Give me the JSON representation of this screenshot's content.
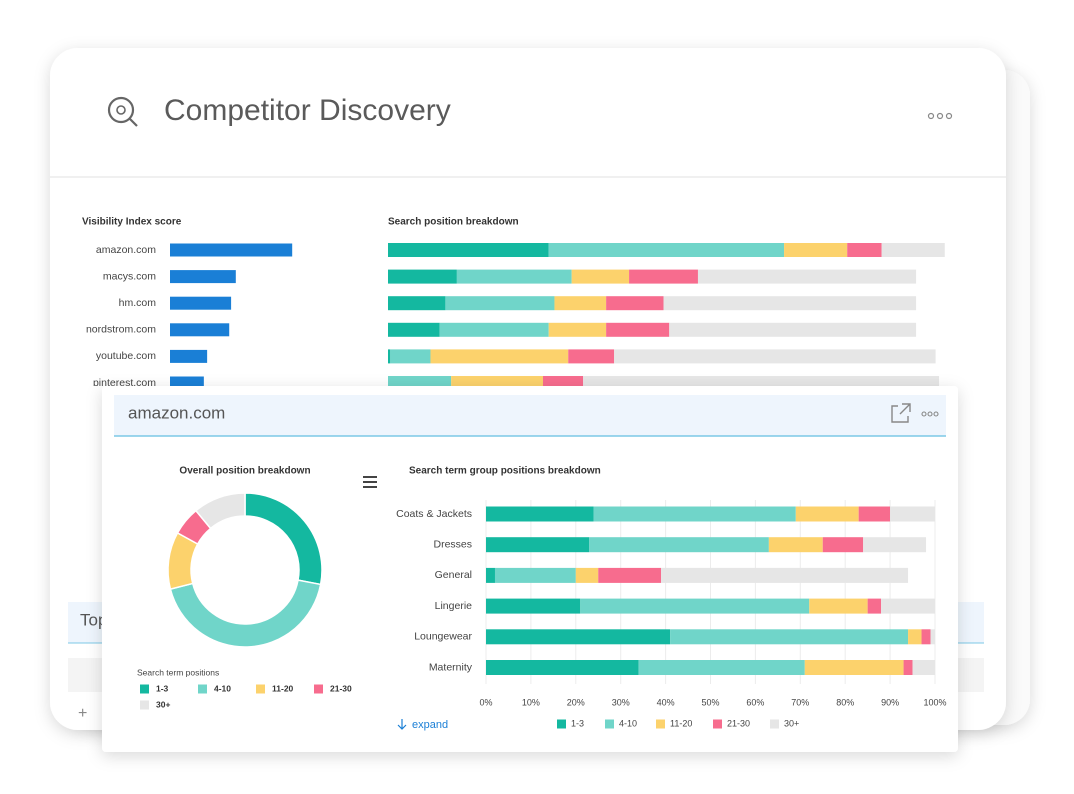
{
  "header": {
    "title": "Competitor Discovery"
  },
  "background": {
    "section_title": "Top"
  },
  "popup": {
    "title": "amazon.com",
    "expand": "expand"
  },
  "chart_data": [
    {
      "type": "bar",
      "orientation": "horizontal",
      "title": "Visibility Index score",
      "categories": [
        "amazon.com",
        "macys.com",
        "hm.com",
        "nordstrom.com",
        "youtube.com",
        "pinterest.com"
      ],
      "values": [
        2.6,
        1.4,
        1.3,
        1.26,
        0.79,
        0.72
      ],
      "color": "#1a7fd6",
      "xlim": [
        0,
        4
      ]
    },
    {
      "type": "stacked_bar",
      "orientation": "horizontal",
      "title": "Search position breakdown",
      "xlim": [
        0,
        100
      ],
      "series": [
        {
          "color": "#14b8a0",
          "values": [
            28,
            12,
            10,
            9,
            0.4,
            0
          ]
        },
        {
          "color": "#70d5c9",
          "values": [
            41,
            20,
            19,
            19,
            7,
            11
          ]
        },
        {
          "color": "#fcd26c",
          "values": [
            11,
            10,
            9,
            10,
            24,
            16
          ]
        },
        {
          "color": "#f76c8e",
          "values": [
            6,
            12,
            10,
            11,
            8,
            7
          ]
        },
        {
          "color": "#e6e6e6",
          "values": [
            11,
            38,
            44,
            43,
            56,
            62
          ]
        }
      ]
    },
    {
      "type": "pie",
      "donut": true,
      "title": "Overall position breakdown",
      "legend_title": "Search term positions",
      "categories": [
        "1-3",
        "4-10",
        "11-20",
        "21-30",
        "30+"
      ],
      "values": [
        28,
        43,
        12,
        6,
        11
      ],
      "colors": [
        "#14b8a0",
        "#70d5c9",
        "#fcd26c",
        "#f76c8e",
        "#e6e6e6"
      ]
    },
    {
      "type": "stacked_bar",
      "orientation": "horizontal",
      "title": "Search term group positions breakdown",
      "categories": [
        "Coats & Jackets",
        "Dresses",
        "General",
        "Lingerie",
        "Loungewear",
        "Maternity"
      ],
      "xlim": [
        0,
        100
      ],
      "xticks": [
        {
          "value": 0,
          "label": "0%"
        },
        {
          "value": 10,
          "label": "10%"
        },
        {
          "value": 20,
          "label": "20%"
        },
        {
          "value": 30,
          "label": "30%"
        },
        {
          "value": 40,
          "label": "40%"
        },
        {
          "value": 50,
          "label": "50%"
        },
        {
          "value": 60,
          "label": "60%"
        },
        {
          "value": 70,
          "label": "70%"
        },
        {
          "value": 80,
          "label": "80%"
        },
        {
          "value": 90,
          "label": "90%"
        },
        {
          "value": 100,
          "label": "100%"
        }
      ],
      "grid": true,
      "legend": "bottom",
      "series": [
        {
          "name": "1-3",
          "color": "#14b8a0",
          "values": [
            24,
            23,
            2,
            21,
            41,
            34
          ]
        },
        {
          "name": "4-10",
          "color": "#70d5c9",
          "values": [
            45,
            40,
            18,
            51,
            53,
            37
          ]
        },
        {
          "name": "11-20",
          "color": "#fcd26c",
          "values": [
            14,
            12,
            5,
            13,
            3,
            22
          ]
        },
        {
          "name": "21-30",
          "color": "#f76c8e",
          "values": [
            7,
            9,
            14,
            3,
            2,
            2
          ]
        },
        {
          "name": "30+",
          "color": "#e6e6e6",
          "values": [
            10,
            14,
            55,
            12,
            1,
            5
          ]
        }
      ]
    }
  ]
}
